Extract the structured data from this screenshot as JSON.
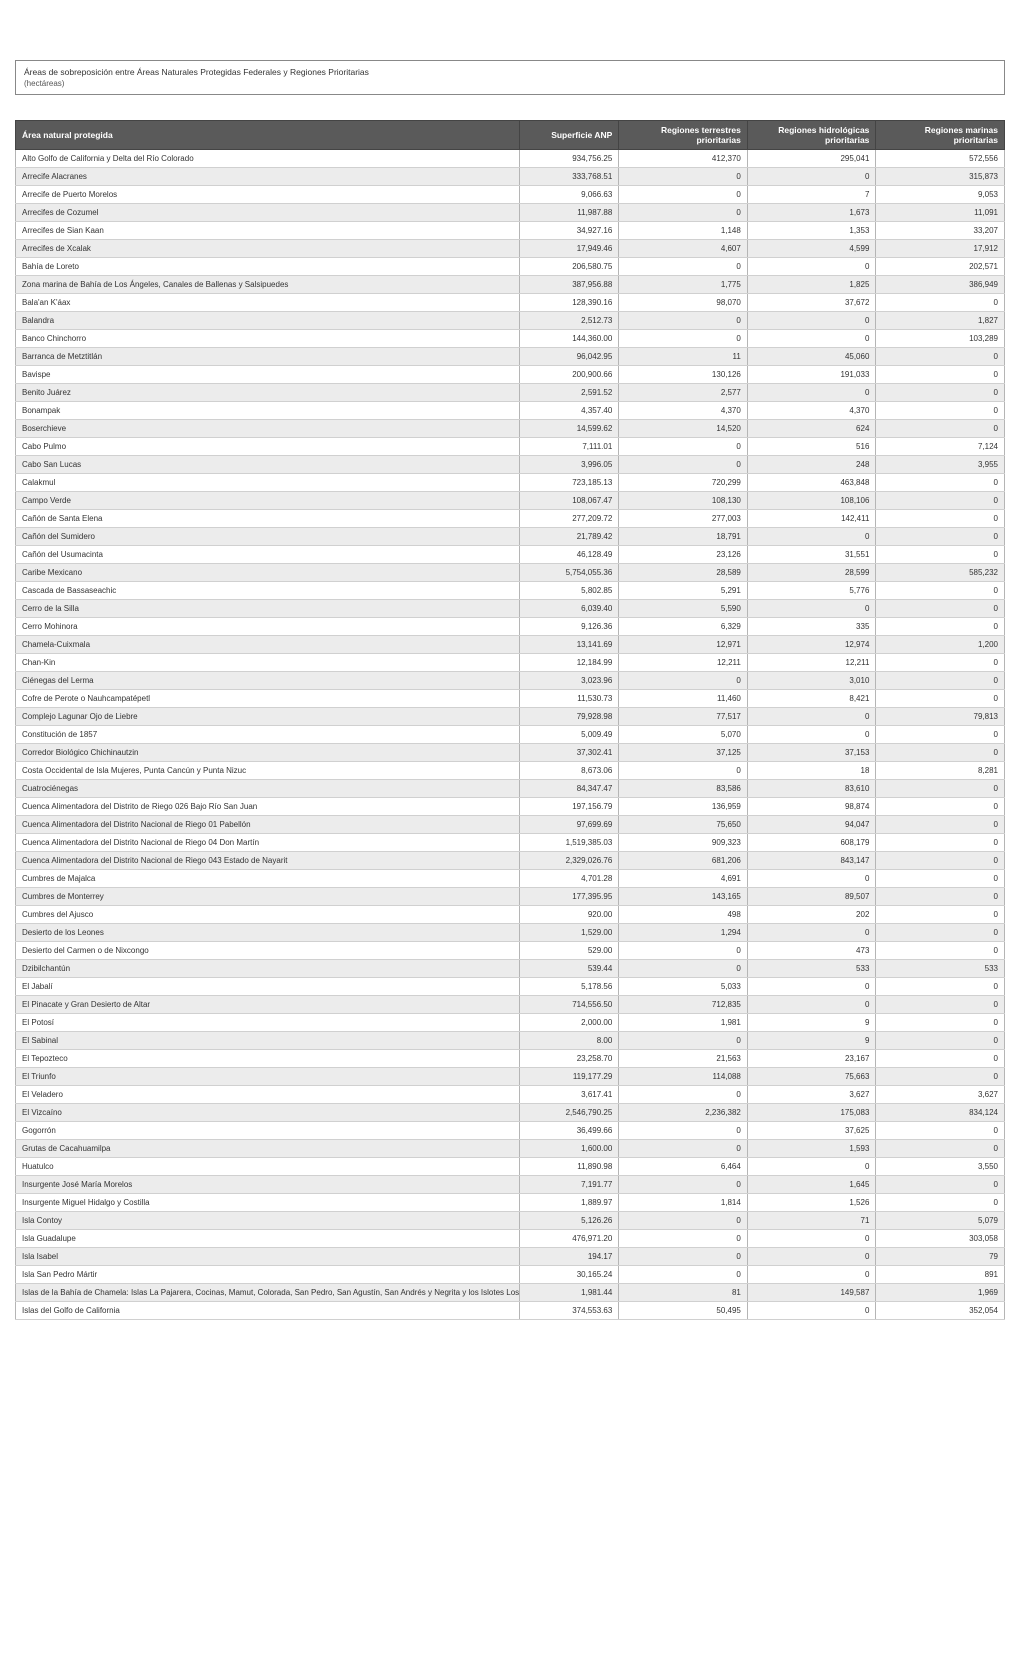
{
  "header": {
    "title": "Áreas de sobreposición entre Áreas Naturales Protegidas Federales y Regiones Prioritarias",
    "sub": "(hectáreas)"
  },
  "columns": [
    "Área natural protegida",
    "Superficie ANP",
    "Regiones terrestres prioritarias",
    "Regiones hidrológicas prioritarias",
    "Regiones marinas prioritarias"
  ],
  "rows": [
    [
      "Alto Golfo de California y Delta del Río Colorado",
      "934,756.25",
      "412,370",
      "295,041",
      "572,556"
    ],
    [
      "Arrecife Alacranes",
      "333,768.51",
      "0",
      "0",
      "315,873"
    ],
    [
      "Arrecife de Puerto Morelos",
      "9,066.63",
      "0",
      "7",
      "9,053"
    ],
    [
      "Arrecifes de Cozumel",
      "11,987.88",
      "0",
      "1,673",
      "11,091"
    ],
    [
      "Arrecifes de Sian Kaan",
      "34,927.16",
      "1,148",
      "1,353",
      "33,207"
    ],
    [
      "Arrecifes de Xcalak",
      "17,949.46",
      "4,607",
      "4,599",
      "17,912"
    ],
    [
      "Bahía de Loreto",
      "206,580.75",
      "0",
      "0",
      "202,571"
    ],
    [
      "Zona marina de Bahía de Los Ángeles, Canales de Ballenas y Salsipuedes",
      "387,956.88",
      "1,775",
      "1,825",
      "386,949"
    ],
    [
      "Bala'an K'áax",
      "128,390.16",
      "98,070",
      "37,672",
      "0"
    ],
    [
      "Balandra",
      "2,512.73",
      "0",
      "0",
      "1,827"
    ],
    [
      "Banco Chinchorro",
      "144,360.00",
      "0",
      "0",
      "103,289"
    ],
    [
      "Barranca de Metztitlán",
      "96,042.95",
      "11",
      "45,060",
      "0"
    ],
    [
      "Bavispe",
      "200,900.66",
      "130,126",
      "191,033",
      "0"
    ],
    [
      "Benito Juárez",
      "2,591.52",
      "2,577",
      "0",
      "0"
    ],
    [
      "Bonampak",
      "4,357.40",
      "4,370",
      "4,370",
      "0"
    ],
    [
      "Boserchieve",
      "14,599.62",
      "14,520",
      "624",
      "0"
    ],
    [
      "Cabo Pulmo",
      "7,111.01",
      "0",
      "516",
      "7,124"
    ],
    [
      "Cabo San Lucas",
      "3,996.05",
      "0",
      "248",
      "3,955"
    ],
    [
      "Calakmul",
      "723,185.13",
      "720,299",
      "463,848",
      "0"
    ],
    [
      "Campo Verde",
      "108,067.47",
      "108,130",
      "108,106",
      "0"
    ],
    [
      "Cañón de Santa Elena",
      "277,209.72",
      "277,003",
      "142,411",
      "0"
    ],
    [
      "Cañón del Sumidero",
      "21,789.42",
      "18,791",
      "0",
      "0"
    ],
    [
      "Cañón del Usumacinta",
      "46,128.49",
      "23,126",
      "31,551",
      "0"
    ],
    [
      "Caribe Mexicano",
      "5,754,055.36",
      "28,589",
      "28,599",
      "585,232"
    ],
    [
      "Cascada de Bassaseachic",
      "5,802.85",
      "5,291",
      "5,776",
      "0"
    ],
    [
      "Cerro de la Silla",
      "6,039.40",
      "5,590",
      "0",
      "0"
    ],
    [
      "Cerro Mohinora",
      "9,126.36",
      "6,329",
      "335",
      "0"
    ],
    [
      "Chamela-Cuixmala",
      "13,141.69",
      "12,971",
      "12,974",
      "1,200"
    ],
    [
      "Chan-Kin",
      "12,184.99",
      "12,211",
      "12,211",
      "0"
    ],
    [
      "Ciénegas del Lerma",
      "3,023.96",
      "0",
      "3,010",
      "0"
    ],
    [
      "Cofre de Perote o Nauhcampatépetl",
      "11,530.73",
      "11,460",
      "8,421",
      "0"
    ],
    [
      "Complejo Lagunar Ojo de Liebre",
      "79,928.98",
      "77,517",
      "0",
      "79,813"
    ],
    [
      "Constitución de 1857",
      "5,009.49",
      "5,070",
      "0",
      "0"
    ],
    [
      "Corredor Biológico Chichinautzin",
      "37,302.41",
      "37,125",
      "37,153",
      "0"
    ],
    [
      "Costa Occidental de Isla Mujeres, Punta Cancún y Punta Nizuc",
      "8,673.06",
      "0",
      "18",
      "8,281"
    ],
    [
      "Cuatrociénegas",
      "84,347.47",
      "83,586",
      "83,610",
      "0"
    ],
    [
      "Cuenca Alimentadora del Distrito de Riego 026 Bajo Río San Juan",
      "197,156.79",
      "136,959",
      "98,874",
      "0"
    ],
    [
      "Cuenca Alimentadora del Distrito Nacional de Riego 01 Pabellón",
      "97,699.69",
      "75,650",
      "94,047",
      "0"
    ],
    [
      "Cuenca Alimentadora del Distrito Nacional de Riego 04 Don Martín",
      "1,519,385.03",
      "909,323",
      "608,179",
      "0"
    ],
    [
      "Cuenca Alimentadora del Distrito Nacional de Riego 043 Estado de Nayarit",
      "2,329,026.76",
      "681,206",
      "843,147",
      "0"
    ],
    [
      "Cumbres de Majalca",
      "4,701.28",
      "4,691",
      "0",
      "0"
    ],
    [
      "Cumbres de Monterrey",
      "177,395.95",
      "143,165",
      "89,507",
      "0"
    ],
    [
      "Cumbres del Ajusco",
      "920.00",
      "498",
      "202",
      "0"
    ],
    [
      "Desierto de los Leones",
      "1,529.00",
      "1,294",
      "0",
      "0"
    ],
    [
      "Desierto del Carmen o de Nixcongo",
      "529.00",
      "0",
      "473",
      "0"
    ],
    [
      "Dzibilchantún",
      "539.44",
      "0",
      "533",
      "533"
    ],
    [
      "El Jabalí",
      "5,178.56",
      "5,033",
      "0",
      "0"
    ],
    [
      "El Pinacate y Gran Desierto de Altar",
      "714,556.50",
      "712,835",
      "0",
      "0"
    ],
    [
      "El Potosí",
      "2,000.00",
      "1,981",
      "9",
      "0"
    ],
    [
      "El Sabinal",
      "8.00",
      "0",
      "9",
      "0"
    ],
    [
      "El Tepozteco",
      "23,258.70",
      "21,563",
      "23,167",
      "0"
    ],
    [
      "El Triunfo",
      "119,177.29",
      "114,088",
      "75,663",
      "0"
    ],
    [
      "El Veladero",
      "3,617.41",
      "0",
      "3,627",
      "3,627"
    ],
    [
      "El Vizcaíno",
      "2,546,790.25",
      "2,236,382",
      "175,083",
      "834,124"
    ],
    [
      "Gogorrón",
      "36,499.66",
      "0",
      "37,625",
      "0"
    ],
    [
      "Grutas de Cacahuamilpa",
      "1,600.00",
      "0",
      "1,593",
      "0"
    ],
    [
      "Huatulco",
      "11,890.98",
      "6,464",
      "0",
      "3,550"
    ],
    [
      "Insurgente José María Morelos",
      "7,191.77",
      "0",
      "1,645",
      "0"
    ],
    [
      "Insurgente Miguel Hidalgo y Costilla",
      "1,889.97",
      "1,814",
      "1,526",
      "0"
    ],
    [
      "Isla Contoy",
      "5,126.26",
      "0",
      "71",
      "5,079"
    ],
    [
      "Isla Guadalupe",
      "476,971.20",
      "0",
      "0",
      "303,058"
    ],
    [
      "Isla Isabel",
      "194.17",
      "0",
      "0",
      "79"
    ],
    [
      "Isla San Pedro Mártir",
      "30,165.24",
      "0",
      "0",
      "891"
    ],
    [
      "Islas de la Bahía de Chamela: Islas La Pajarera, Cocinas, Mamut, Colorada, San Pedro, San Agustín, San Andrés y Negrita y los Islotes Los Anegados, Novillas, Mosca y Submarino",
      "1,981.44",
      "81",
      "149,587",
      "1,969"
    ],
    [
      "Islas del Golfo de California",
      "374,553.63",
      "50,495",
      "0",
      "352,054"
    ]
  ],
  "style": {
    "header_bg": "#5a5a5a",
    "header_text": "#ffffff",
    "row_alt_bg": "#ececec",
    "border_color": "#b5b5b5"
  }
}
